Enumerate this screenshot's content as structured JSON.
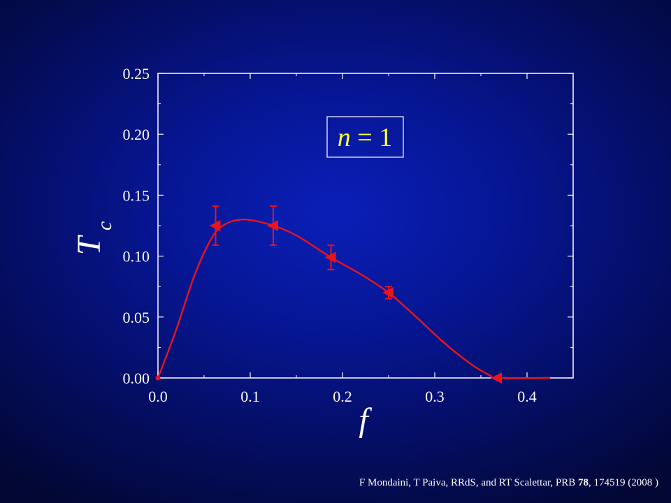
{
  "chart_data": {
    "type": "line",
    "xlabel": "f",
    "ylabel_main": "T",
    "ylabel_sub": "c",
    "xlim": [
      0.0,
      0.45
    ],
    "ylim": [
      0.0,
      0.25
    ],
    "x_ticks": [
      "0.0",
      "0.1",
      "0.2",
      "0.3",
      "0.4"
    ],
    "x_tick_values": [
      0.0,
      0.1,
      0.2,
      0.3,
      0.4
    ],
    "y_ticks": [
      "0.00",
      "0.05",
      "0.10",
      "0.15",
      "0.20",
      "0.25"
    ],
    "y_tick_values": [
      0.0,
      0.05,
      0.1,
      0.15,
      0.2,
      0.25
    ],
    "annotation": "n = 1",
    "annotation_italic": "n",
    "annotation_rest": " = 1",
    "color": "#e8141e",
    "annotation_color": "#ffff33",
    "series": [
      {
        "points": [
          {
            "x": 0.0,
            "y": 0.0,
            "err": 0.0
          },
          {
            "x": 0.0625,
            "y": 0.125,
            "err": 0.016
          },
          {
            "x": 0.125,
            "y": 0.125,
            "err": 0.016
          },
          {
            "x": 0.1875,
            "y": 0.099,
            "err": 0.01
          },
          {
            "x": 0.25,
            "y": 0.07,
            "err": 0.005
          },
          {
            "x": 0.3675,
            "y": 0.0,
            "err": 0.0
          }
        ],
        "curve": [
          [
            0.0,
            0.0
          ],
          [
            0.02,
            0.04
          ],
          [
            0.04,
            0.085
          ],
          [
            0.06,
            0.117
          ],
          [
            0.075,
            0.127
          ],
          [
            0.09,
            0.13
          ],
          [
            0.105,
            0.129
          ],
          [
            0.125,
            0.125
          ],
          [
            0.15,
            0.117
          ],
          [
            0.1875,
            0.099
          ],
          [
            0.22,
            0.085
          ],
          [
            0.25,
            0.07
          ],
          [
            0.28,
            0.05
          ],
          [
            0.31,
            0.029
          ],
          [
            0.34,
            0.011
          ],
          [
            0.36,
            0.002
          ],
          [
            0.3675,
            0.0
          ],
          [
            0.425,
            0.0
          ]
        ]
      }
    ]
  },
  "footer": {
    "citation_prefix": "F Mondaini, T Paiva, RRdS, and RT Scalettar, PRB ",
    "citation_volume": "78",
    "citation_suffix": ", 174519 (2008 )"
  }
}
